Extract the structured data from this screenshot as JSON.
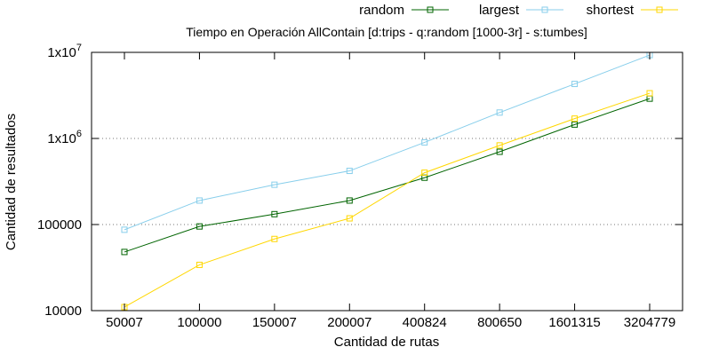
{
  "chart_data": {
    "type": "line",
    "title": "Tiempo en Operación AllContain [d:trips - q:random [1000-3r] - s:tumbes]",
    "xlabel": "Cantidad de rutas",
    "ylabel": "Cantidad de resultados",
    "yscale": "log",
    "ylim": [
      10000,
      10000000
    ],
    "grid": "horizontal dotted at 1e5 and 1e6",
    "legend_position": "top-right, outside plot",
    "categories": [
      "50007",
      "100000",
      "150007",
      "200007",
      "400824",
      "800650",
      "1601315",
      "3204779"
    ],
    "yticks": [
      {
        "value": 10000,
        "label": "10000"
      },
      {
        "value": 100000,
        "label": "100000"
      },
      {
        "value": 1000000,
        "label": "1x10",
        "exp": "6"
      },
      {
        "value": 10000000,
        "label": "1x10",
        "exp": "7"
      }
    ],
    "series": [
      {
        "name": "random",
        "color": "#006400",
        "values": [
          48000,
          95000,
          132000,
          190000,
          350000,
          700000,
          1450000,
          2900000
        ]
      },
      {
        "name": "largest",
        "color": "#87ceeb",
        "values": [
          87000,
          190000,
          290000,
          420000,
          900000,
          2000000,
          4300000,
          9300000
        ]
      },
      {
        "name": "shortest",
        "color": "#ffd700",
        "values": [
          11000,
          34000,
          68000,
          118000,
          400000,
          830000,
          1700000,
          3350000
        ]
      }
    ]
  }
}
